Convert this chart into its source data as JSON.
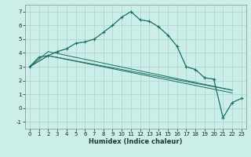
{
  "xlabel": "Humidex (Indice chaleur)",
  "bg_color": "#cceee8",
  "grid_color": "#b0d8d0",
  "line_color": "#1a6e62",
  "xlim": [
    -0.5,
    23.5
  ],
  "ylim": [
    -1.5,
    7.5
  ],
  "xtick_labels": [
    "0",
    "1",
    "2",
    "3",
    "4",
    "5",
    "6",
    "7",
    "8",
    "9",
    "10",
    "11",
    "12",
    "13",
    "14",
    "15",
    "16",
    "17",
    "18",
    "19",
    "20",
    "21",
    "22",
    "23"
  ],
  "xtick_pos": [
    0,
    1,
    2,
    3,
    4,
    5,
    6,
    7,
    8,
    9,
    10,
    11,
    12,
    13,
    14,
    15,
    16,
    17,
    18,
    19,
    20,
    21,
    22,
    23
  ],
  "ytick_pos": [
    -1,
    0,
    1,
    2,
    3,
    4,
    5,
    6,
    7
  ],
  "ytick_labels": [
    "-1",
    "0",
    "1",
    "2",
    "3",
    "4",
    "5",
    "6",
    "7"
  ],
  "series1_x": [
    0,
    1,
    2,
    3,
    4,
    5,
    6,
    7,
    8,
    9,
    10,
    11,
    12,
    13,
    14,
    15,
    16,
    17,
    18,
    19,
    20,
    21,
    22,
    23
  ],
  "series1_y": [
    3.0,
    3.7,
    3.8,
    4.1,
    4.3,
    4.7,
    4.8,
    5.0,
    5.5,
    6.0,
    6.6,
    7.0,
    6.4,
    6.3,
    5.9,
    5.3,
    4.5,
    3.0,
    2.8,
    2.2,
    2.1,
    -0.7,
    0.4,
    0.7
  ],
  "ref_line1_x": [
    0,
    2,
    22
  ],
  "ref_line1_y": [
    3.0,
    3.8,
    1.3
  ],
  "ref_line2_x": [
    0,
    2,
    22
  ],
  "ref_line2_y": [
    3.0,
    3.8,
    1.1
  ],
  "ref_line3_x": [
    0,
    2,
    22
  ],
  "ref_line3_y": [
    3.0,
    4.1,
    1.3
  ]
}
